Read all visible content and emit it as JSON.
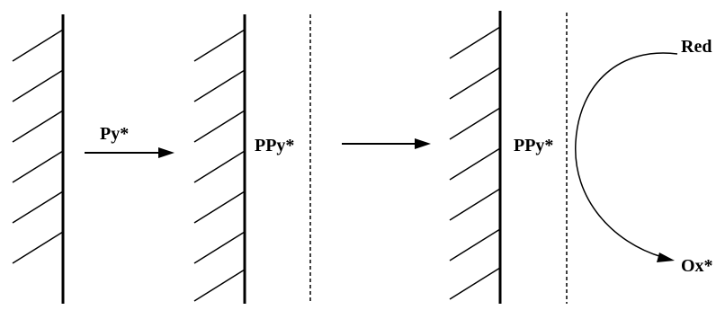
{
  "labels": {
    "monomer": "Py*",
    "polymer_stage2": "PPy*",
    "polymer_stage3": "PPy*",
    "reduced_species": "Red",
    "oxidized_species": "Ox*"
  }
}
